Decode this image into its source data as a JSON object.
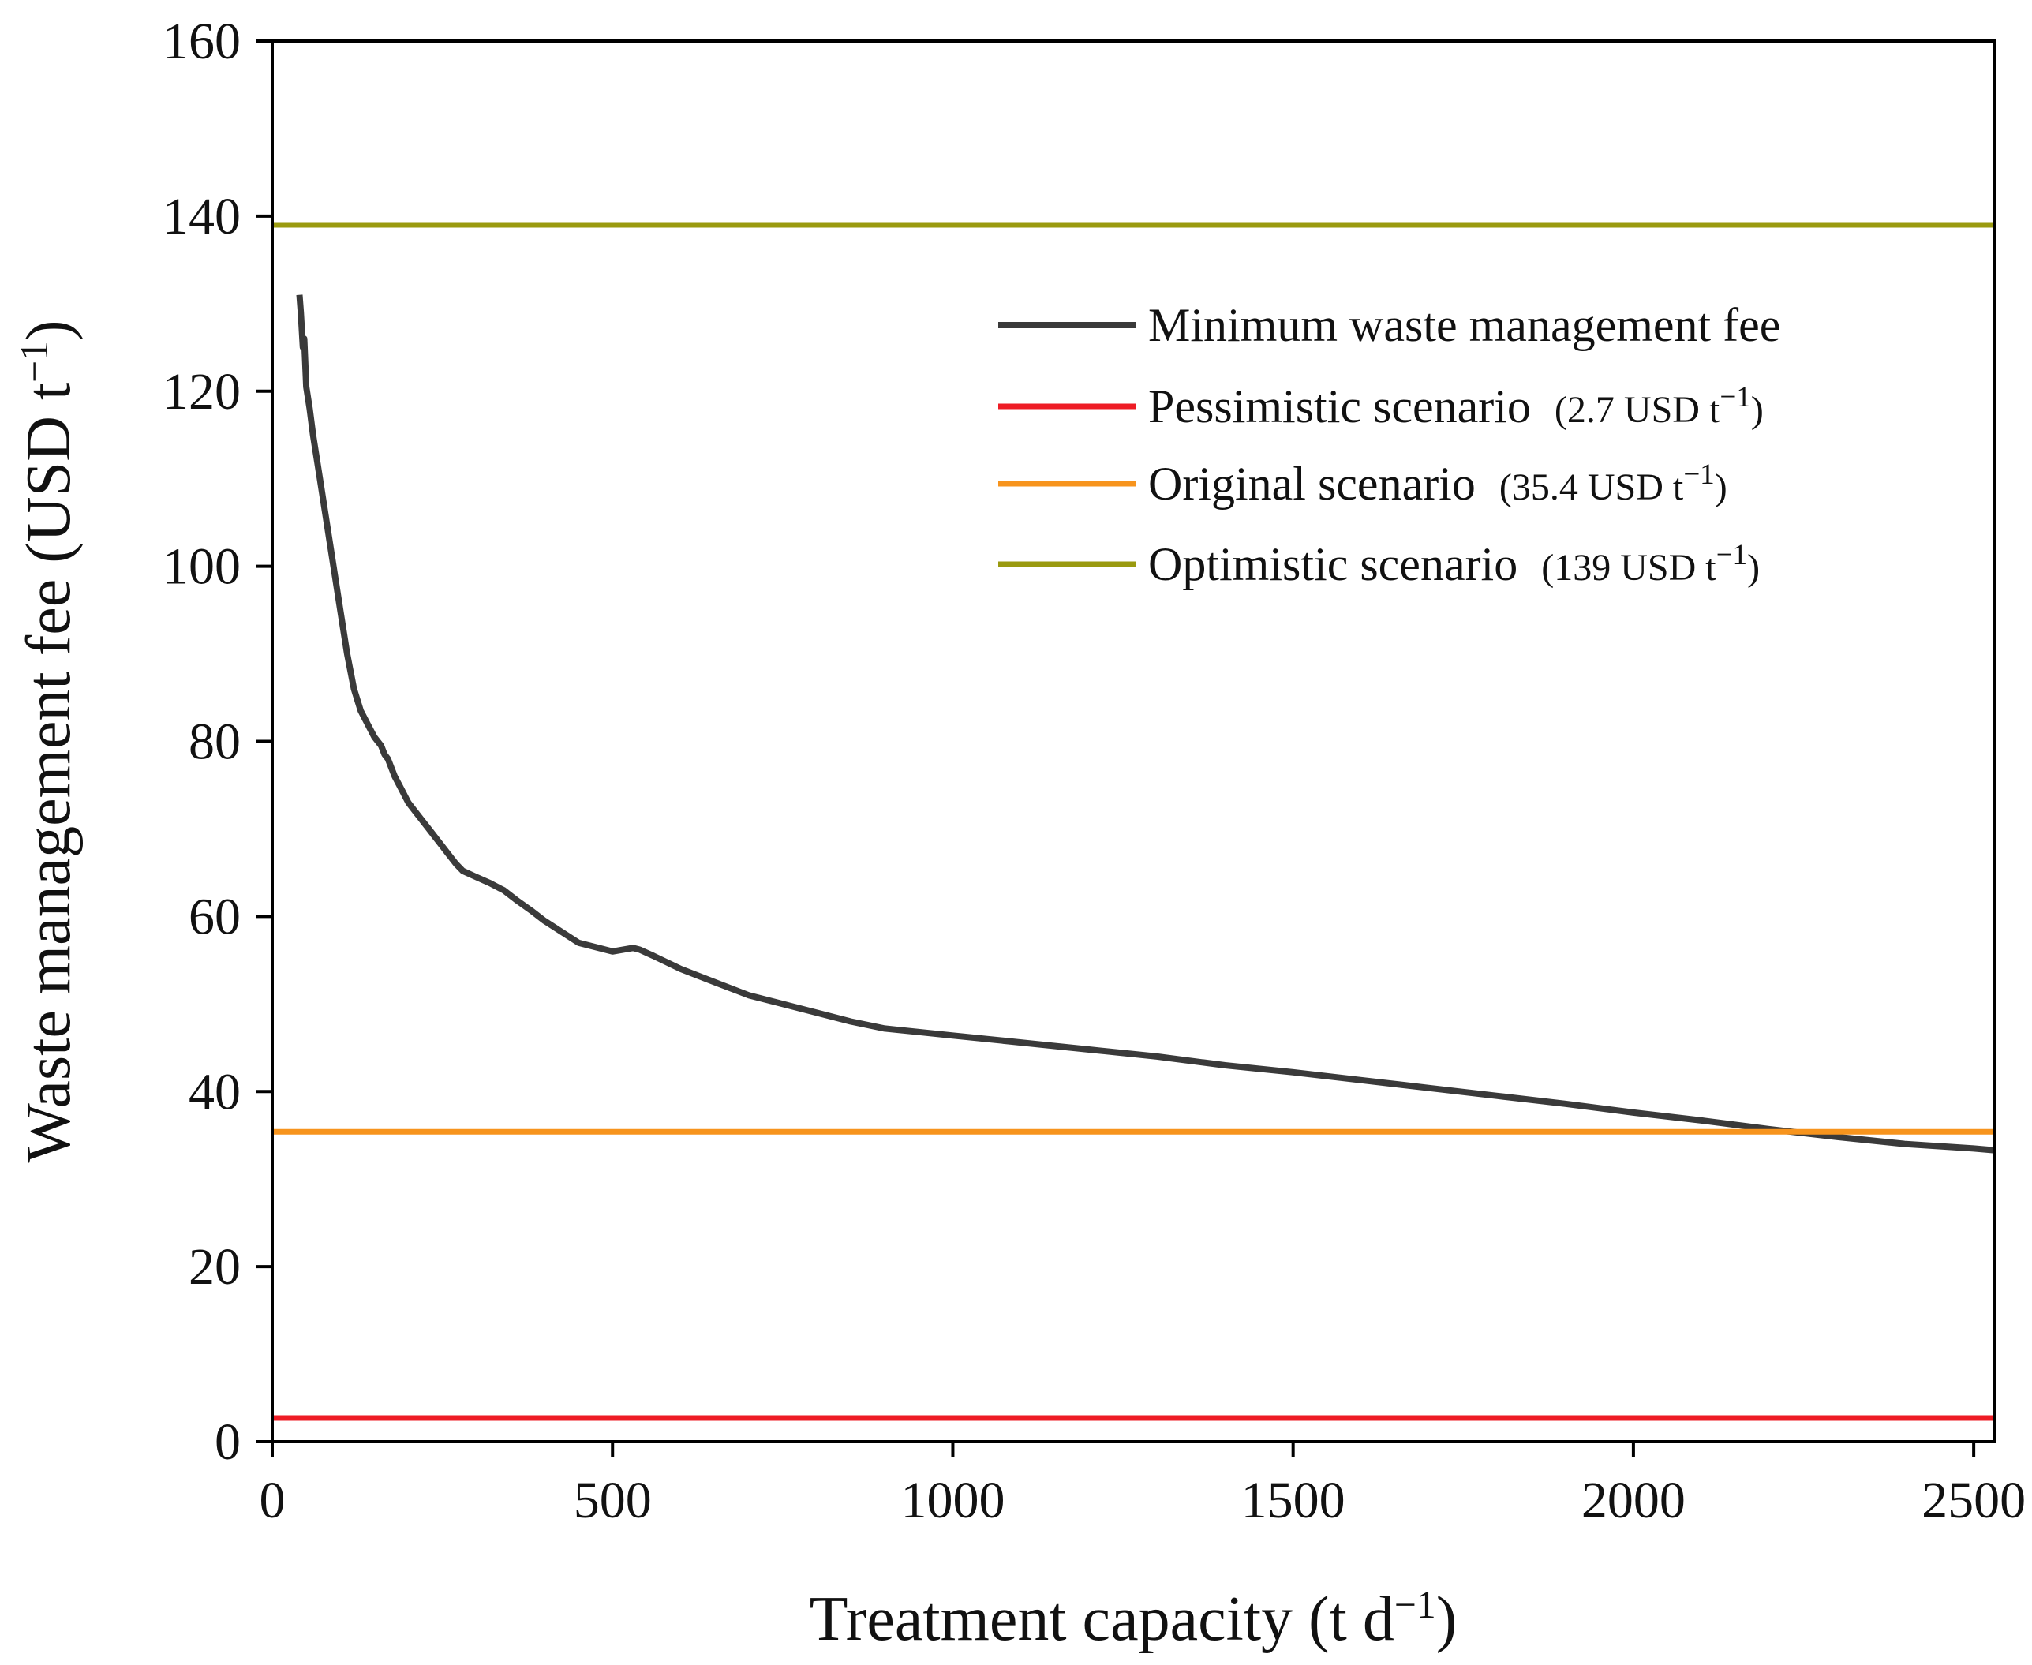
{
  "chart_data": {
    "type": "line",
    "xlabel": {
      "prefix": "Treatment capacity (t d",
      "sup": "−1",
      "suffix": ")"
    },
    "ylabel": {
      "prefix": "Waste management fee (USD t",
      "sup": "−1",
      "suffix": ")"
    },
    "xlim": [
      0,
      2530
    ],
    "ylim": [
      0,
      160
    ],
    "x_ticks": [
      0,
      500,
      1000,
      1500,
      2000,
      2500
    ],
    "y_ticks": [
      0,
      20,
      40,
      60,
      80,
      100,
      120,
      140,
      160
    ],
    "grid": false,
    "legend_position": "top-right",
    "series": [
      {
        "name": "Minimum waste management fee",
        "color": "#3a3a3a",
        "x": [
          40,
          42,
          45,
          47,
          50,
          55,
          60,
          70,
          80,
          90,
          100,
          110,
          120,
          130,
          140,
          150,
          155,
          160,
          165,
          170,
          180,
          190,
          200,
          210,
          215,
          220,
          230,
          240,
          250,
          260,
          270,
          280,
          300,
          320,
          335,
          340,
          360,
          380,
          400,
          450,
          500,
          530,
          540,
          560,
          600,
          650,
          700,
          750,
          800,
          850,
          900,
          950,
          1000,
          1100,
          1200,
          1300,
          1400,
          1500,
          1600,
          1700,
          1800,
          1900,
          2000,
          2100,
          2200,
          2300,
          2400,
          2500,
          2530
        ],
        "y": [
          131,
          129,
          125,
          126,
          120.5,
          118,
          115,
          110,
          105,
          100,
          95,
          90,
          86,
          83.5,
          82,
          80.5,
          80,
          79.5,
          78.5,
          78,
          76,
          74.5,
          73,
          72,
          71.5,
          71,
          70,
          69,
          68,
          67,
          66,
          65.2,
          64.5,
          63.8,
          63.2,
          63,
          61.8,
          60.7,
          59.5,
          57,
          56,
          56.4,
          56.2,
          55.5,
          54,
          52.5,
          51,
          50,
          49,
          48,
          47.2,
          46.8,
          46.4,
          45.6,
          44.8,
          44,
          43,
          42.2,
          41.3,
          40.4,
          39.5,
          38.6,
          37.6,
          36.7,
          35.7,
          34.8,
          34,
          33.5,
          33.3
        ]
      },
      {
        "name": "Pessimistic scenario",
        "value_label": {
          "prefix": "(2.7 USD t",
          "sup": "−1",
          "suffix": ")"
        },
        "color": "#ee1c25",
        "x": [
          0,
          2530
        ],
        "y": [
          2.7,
          2.7
        ]
      },
      {
        "name": "Original scenario",
        "value_label": {
          "prefix": "(35.4 USD t",
          "sup": "−1",
          "suffix": ")"
        },
        "color": "#f7941d",
        "x": [
          0,
          2530
        ],
        "y": [
          35.4,
          35.4
        ]
      },
      {
        "name": "Optimistic scenario",
        "value_label": {
          "prefix": "(139 USD t",
          "sup": "−1",
          "suffix": ")"
        },
        "color": "#9a9a0f",
        "x": [
          0,
          2530
        ],
        "y": [
          139,
          139
        ]
      }
    ]
  }
}
